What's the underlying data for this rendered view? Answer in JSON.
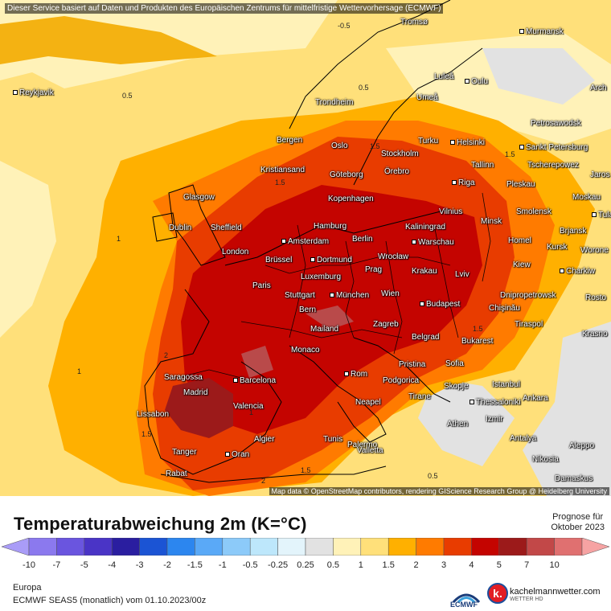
{
  "banner": "Dieser Service basiert auf Daten und Produkten des Europäischen Zentrums für mittelfristige Wettervorhersage (ECMWF)",
  "attribution": "Map data © OpenStreetMap contributors, rendering GIScience Research Group @ Heidelberg University",
  "title": "Temperaturabweichung 2m (K=°C)",
  "forecast": {
    "line1": "Prognose für",
    "line2": "Oktober 2023"
  },
  "region": "Europa",
  "model": "ECMWF SEAS5 (monatlich) vom 01.10.2023/00z",
  "ecmwf_label": "ECMWF",
  "brand": {
    "name": "kachelmannwetter.com",
    "sub": "WETTER HD",
    "letter": "k."
  },
  "scale": {
    "ticks": [
      "-10",
      "-7",
      "-5",
      "-4",
      "-3",
      "-2",
      "-1.5",
      "-1",
      "-0.5",
      "-0.25",
      "0.25",
      "0.5",
      "1",
      "1.5",
      "2",
      "3",
      "4",
      "5",
      "7",
      "10"
    ],
    "colors": [
      "#a99cf7",
      "#8b79ee",
      "#6a55df",
      "#4a34c6",
      "#2a1ea0",
      "#1b54d4",
      "#2c86ef",
      "#5aa9f7",
      "#8ccaf9",
      "#bde7fb",
      "#e3f4fb",
      "#e2e2e2",
      "#fff2b8",
      "#ffe07a",
      "#ffb000",
      "#ff7b00",
      "#e83c00",
      "#c40400",
      "#9c1a1a",
      "#c24848",
      "#e07070",
      "#f6a3a3"
    ]
  },
  "isolines": [
    "-0.5",
    "0.5",
    "0.5",
    "1",
    "1",
    "1",
    "1.5",
    "1.5",
    "1.5",
    "1.5",
    "1.5",
    "1.5",
    "2",
    "2",
    "0.5"
  ],
  "cities": [
    {
      "name": "Tromsø"
    },
    {
      "name": "Murmansk"
    },
    {
      "name": "Reykjavik"
    },
    {
      "name": "Luleå"
    },
    {
      "name": "Oulu"
    },
    {
      "name": "Trondheim"
    },
    {
      "name": "Umeå"
    },
    {
      "name": "Arch"
    },
    {
      "name": "Petrosawodsk"
    },
    {
      "name": "Bergen"
    },
    {
      "name": "Oslo"
    },
    {
      "name": "Turku"
    },
    {
      "name": "Helsinki"
    },
    {
      "name": "Sankt Petersburg"
    },
    {
      "name": "Stockholm"
    },
    {
      "name": "Kristiansand"
    },
    {
      "name": "Örebro"
    },
    {
      "name": "Tallinn"
    },
    {
      "name": "Tscherepowez"
    },
    {
      "name": "Jaros"
    },
    {
      "name": "Göteborg"
    },
    {
      "name": "Riga"
    },
    {
      "name": "Pleskau"
    },
    {
      "name": "Glasgow"
    },
    {
      "name": "Kopenhagen"
    },
    {
      "name": "Moskau"
    },
    {
      "name": "Vilnius"
    },
    {
      "name": "Smolensk"
    },
    {
      "name": "Tula"
    },
    {
      "name": "Dublin"
    },
    {
      "name": "Sheffield"
    },
    {
      "name": "Hamburg"
    },
    {
      "name": "Kaliningrad"
    },
    {
      "name": "Minsk"
    },
    {
      "name": "Brjansk"
    },
    {
      "name": "Amsterdam"
    },
    {
      "name": "Berlin"
    },
    {
      "name": "Warschau"
    },
    {
      "name": "Homel"
    },
    {
      "name": "London"
    },
    {
      "name": "Kursk"
    },
    {
      "name": "Worone"
    },
    {
      "name": "Brüssel"
    },
    {
      "name": "Dortmund"
    },
    {
      "name": "Wrocław"
    },
    {
      "name": "Kiew"
    },
    {
      "name": "Prag"
    },
    {
      "name": "Krakau"
    },
    {
      "name": "Charkiw"
    },
    {
      "name": "Luxemburg"
    },
    {
      "name": "Lviv"
    },
    {
      "name": "Paris"
    },
    {
      "name": "Dnipropetrowsk"
    },
    {
      "name": "Stuttgart"
    },
    {
      "name": "München"
    },
    {
      "name": "Wien"
    },
    {
      "name": "Rosto"
    },
    {
      "name": "Budapest"
    },
    {
      "name": "Chişinău"
    },
    {
      "name": "Bern"
    },
    {
      "name": "Mailand"
    },
    {
      "name": "Zagreb"
    },
    {
      "name": "Tiraspol"
    },
    {
      "name": "Krasno"
    },
    {
      "name": "Belgrad"
    },
    {
      "name": "Monaco"
    },
    {
      "name": "Bukarest"
    },
    {
      "name": "Pristina"
    },
    {
      "name": "Sofia"
    },
    {
      "name": "Rom"
    },
    {
      "name": "Saragossa"
    },
    {
      "name": "Barcelona"
    },
    {
      "name": "Podgorica"
    },
    {
      "name": "Istanbul"
    },
    {
      "name": "Madrid"
    },
    {
      "name": "Skopje"
    },
    {
      "name": "Neapel"
    },
    {
      "name": "Tirane"
    },
    {
      "name": "Ankara"
    },
    {
      "name": "Valencia"
    },
    {
      "name": "Thessaloniki"
    },
    {
      "name": "Lissabon"
    },
    {
      "name": "Izmir"
    },
    {
      "name": "Athen"
    },
    {
      "name": "Palermo"
    },
    {
      "name": "Algier"
    },
    {
      "name": "Tunis"
    },
    {
      "name": "Antalya"
    },
    {
      "name": "Aleppo"
    },
    {
      "name": "Valletta"
    },
    {
      "name": "Tanger"
    },
    {
      "name": "Oran"
    },
    {
      "name": "Nikosia"
    },
    {
      "name": "Rabat"
    },
    {
      "name": "Damaskus"
    }
  ]
}
